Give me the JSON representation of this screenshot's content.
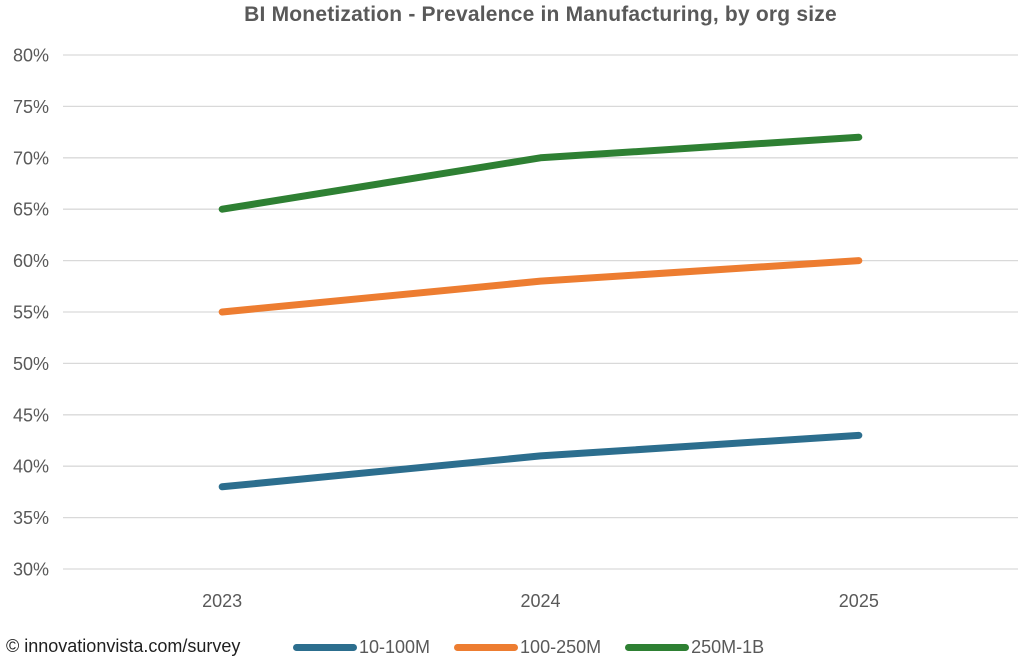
{
  "chart_data": {
    "type": "line",
    "title": "BI Monetization - Prevalence in Manufacturing, by org size",
    "categories": [
      "2023",
      "2024",
      "2025"
    ],
    "series": [
      {
        "name": "10-100M",
        "color": "#2C6E8E",
        "values": [
          38,
          41,
          43
        ]
      },
      {
        "name": "100-250M",
        "color": "#ED7D31",
        "values": [
          55,
          58,
          60
        ]
      },
      {
        "name": "250M-1B",
        "color": "#2E8033",
        "values": [
          65,
          70,
          72
        ]
      }
    ],
    "xlabel": "",
    "ylabel": "",
    "ylim": [
      30,
      80
    ],
    "ytick_step": 5,
    "ytick_format": "percent",
    "grid": "horizontal",
    "legend_position": "bottom"
  },
  "footer": {
    "copyright": "© innovationvista.com/survey"
  },
  "colors": {
    "title": "#595959",
    "axis_label": "#595959",
    "gridline": "#D9D9D9",
    "footer_text": "#1f1f1f",
    "legend_text": "#595959"
  }
}
